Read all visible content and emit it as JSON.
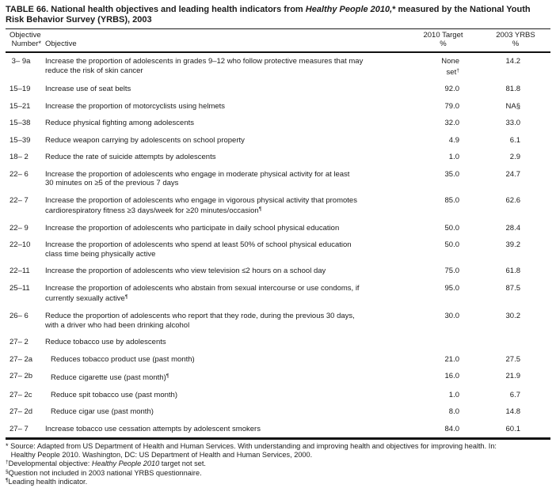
{
  "title": {
    "segments": [
      {
        "t": "TABLE 66. National health objectives and leading health indicators from "
      },
      {
        "t": "Healthy People 2010,",
        "i": true
      },
      {
        "t": "* measured by the National Youth\nRisk Behavior Survey (YRBS), 2003"
      }
    ]
  },
  "table": {
    "headers": {
      "number": "Objective\n Number*",
      "objective": "Objective",
      "target": "2010 Target\n%",
      "yrbs": "2003 YRBS\n%"
    },
    "rows": [
      {
        "num": " 3– 9a",
        "obj": [
          {
            "t": "Increase the proportion of adolescents in grades 9–12 who follow protective measures that may\nreduce the risk of skin cancer"
          }
        ],
        "target": [
          {
            "t": "None\nset"
          },
          {
            "t": "†",
            "sup": true
          }
        ],
        "yrbs": [
          {
            "t": "14.2"
          }
        ]
      },
      {
        "num": "15–19",
        "obj": [
          {
            "t": "Increase use of seat belts"
          }
        ],
        "target": [
          {
            "t": "92.0"
          }
        ],
        "yrbs": [
          {
            "t": "81.8"
          }
        ]
      },
      {
        "num": "15–21",
        "obj": [
          {
            "t": "Increase the proportion of motorcyclists using helmets"
          }
        ],
        "target": [
          {
            "t": "79.0"
          }
        ],
        "yrbs": [
          {
            "t": "NA§"
          }
        ]
      },
      {
        "num": "15–38",
        "obj": [
          {
            "t": "Reduce physical fighting among adolescents"
          }
        ],
        "target": [
          {
            "t": "32.0"
          }
        ],
        "yrbs": [
          {
            "t": "33.0"
          }
        ]
      },
      {
        "num": "15–39",
        "obj": [
          {
            "t": "Reduce weapon carrying by adolescents on school property"
          }
        ],
        "target": [
          {
            "t": "4.9"
          }
        ],
        "yrbs": [
          {
            "t": "6.1"
          }
        ]
      },
      {
        "num": "18– 2",
        "obj": [
          {
            "t": "Reduce the rate of suicide attempts by adolescents"
          }
        ],
        "target": [
          {
            "t": "1.0"
          }
        ],
        "yrbs": [
          {
            "t": "2.9"
          }
        ]
      },
      {
        "num": "22– 6",
        "obj": [
          {
            "t": "Increase the proportion of adolescents who engage in moderate physical activity for at least\n30 minutes on ≥5 of the previous 7 days"
          }
        ],
        "target": [
          {
            "t": "35.0"
          }
        ],
        "yrbs": [
          {
            "t": "24.7"
          }
        ]
      },
      {
        "num": "22– 7",
        "obj": [
          {
            "t": "Increase the proportion of adolescents who engage in vigorous physical activity that promotes\ncardiorespiratory fitness ≥3 days/week for ≥20 minutes/occasion"
          },
          {
            "t": "¶",
            "sup": true
          }
        ],
        "target": [
          {
            "t": "85.0"
          }
        ],
        "yrbs": [
          {
            "t": "62.6"
          }
        ]
      },
      {
        "num": "22– 9",
        "obj": [
          {
            "t": "Increase the proportion of adolescents who participate in daily school physical education"
          }
        ],
        "target": [
          {
            "t": "50.0"
          }
        ],
        "yrbs": [
          {
            "t": "28.4"
          }
        ]
      },
      {
        "num": "22–10",
        "obj": [
          {
            "t": "Increase the proportion of adolescents who spend at least 50% of school physical education\nclass time being physically active"
          }
        ],
        "target": [
          {
            "t": "50.0"
          }
        ],
        "yrbs": [
          {
            "t": "39.2"
          }
        ]
      },
      {
        "num": "22–11",
        "obj": [
          {
            "t": "Increase the proportion of adolescents who view television ≤2 hours on a school day"
          }
        ],
        "target": [
          {
            "t": "75.0"
          }
        ],
        "yrbs": [
          {
            "t": "61.8"
          }
        ]
      },
      {
        "num": "25–11",
        "obj": [
          {
            "t": "Increase the proportion of adolescents who abstain from sexual intercourse or use condoms, if\ncurrently sexually active"
          },
          {
            "t": "¶",
            "sup": true
          }
        ],
        "target": [
          {
            "t": "95.0"
          }
        ],
        "yrbs": [
          {
            "t": "87.5"
          }
        ]
      },
      {
        "num": "26– 6",
        "obj": [
          {
            "t": "Reduce the proportion of adolescents who report that they rode, during the previous 30 days,\nwith a driver who had been drinking alcohol"
          }
        ],
        "target": [
          {
            "t": "30.0"
          }
        ],
        "yrbs": [
          {
            "t": "30.2"
          }
        ]
      },
      {
        "num": "27– 2",
        "obj": [
          {
            "t": "Reduce tobacco use by adolescents"
          }
        ],
        "target": [],
        "yrbs": []
      },
      {
        "num": "27– 2a",
        "indent": true,
        "obj": [
          {
            "t": "Reduces tobacco product use (past month)"
          }
        ],
        "target": [
          {
            "t": "21.0"
          }
        ],
        "yrbs": [
          {
            "t": "27.5"
          }
        ]
      },
      {
        "num": "27– 2b",
        "indent": true,
        "obj": [
          {
            "t": "Reduce cigarette use (past month)"
          },
          {
            "t": "¶",
            "sup": true
          }
        ],
        "target": [
          {
            "t": "16.0"
          }
        ],
        "yrbs": [
          {
            "t": "21.9"
          }
        ]
      },
      {
        "num": "27– 2c",
        "indent": true,
        "obj": [
          {
            "t": "Reduce spit tobacco use (past month)"
          }
        ],
        "target": [
          {
            "t": "1.0"
          }
        ],
        "yrbs": [
          {
            "t": "6.7"
          }
        ]
      },
      {
        "num": "27– 2d",
        "indent": true,
        "obj": [
          {
            "t": "Reduce cigar use (past month)"
          }
        ],
        "target": [
          {
            "t": "8.0"
          }
        ],
        "yrbs": [
          {
            "t": "14.8"
          }
        ]
      },
      {
        "num": "27– 7",
        "obj": [
          {
            "t": "Increase tobacco use cessation attempts by adolescent smokers"
          }
        ],
        "target": [
          {
            "t": "84.0"
          }
        ],
        "yrbs": [
          {
            "t": "60.1"
          }
        ]
      }
    ]
  },
  "footnotes": [
    {
      "segments": [
        {
          "t": "* Source: Adapted from US Department of Health and Human Services. With understanding and improving health and objectives for improving health. In:\n Healthy People 2010. Washington, DC: US Department of Health and Human Services, 2000."
        }
      ]
    },
    {
      "segments": [
        {
          "t": "†",
          "sup": true
        },
        {
          "t": "Developmental objective: "
        },
        {
          "t": "Healthy People 2010 ",
          "i": true
        },
        {
          "t": "target not set."
        }
      ]
    },
    {
      "segments": [
        {
          "t": "§",
          "sup": true
        },
        {
          "t": "Question not included in 2003 national YRBS questionnaire."
        }
      ]
    },
    {
      "segments": [
        {
          "t": "¶",
          "sup": true
        },
        {
          "t": "Leading health indicator."
        }
      ]
    }
  ],
  "colors": {
    "page_background": "#ffffff",
    "text": "#1b1b1b",
    "rule": "#111111"
  }
}
